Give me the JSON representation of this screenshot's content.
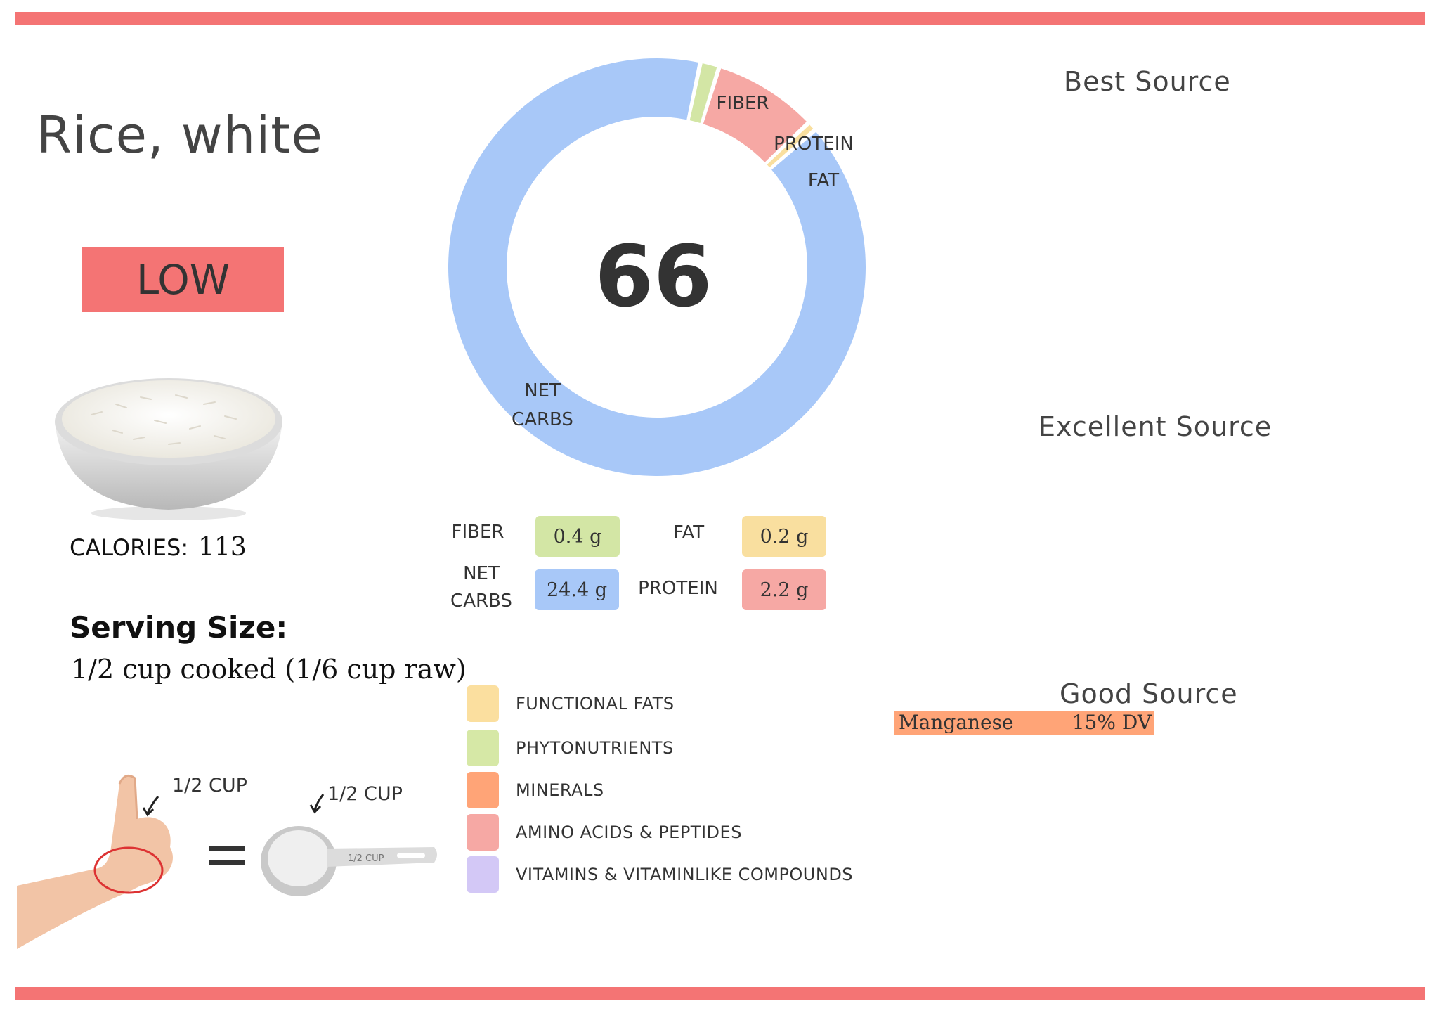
{
  "food": {
    "name": "Rice, white",
    "rating": "LOW",
    "score": "66",
    "calories_label": "CALORIES:",
    "calories": "113"
  },
  "serving": {
    "title": "Serving Size:",
    "value": "1/2 cup cooked (1/6 cup raw)",
    "hand_label": "1/2 CUP",
    "cup_label": "1/2 CUP",
    "cup_handle_text": "1/2 CUP"
  },
  "donut": {
    "labels": {
      "fiber": "FIBER",
      "protein": "PROTEIN",
      "fat": "FAT",
      "net_carbs_1": "NET",
      "net_carbs_2": "CARBS"
    },
    "slices": [
      {
        "name": "FIBER",
        "value": 0.4,
        "color": "#d3e6a5"
      },
      {
        "name": "PROTEIN",
        "value": 2.2,
        "color": "#f6a8a4"
      },
      {
        "name": "FAT",
        "value": 0.2,
        "color": "#f9df9f"
      },
      {
        "name": "NET CARBS",
        "value": 24.4,
        "color": "#a8c8f8"
      }
    ]
  },
  "macros": {
    "fiber_label": "FIBER",
    "fiber_value": "0.4 g",
    "fat_label": "FAT",
    "fat_value": "0.2 g",
    "net_carbs_label_1": "NET",
    "net_carbs_label_2": "CARBS",
    "net_carbs_value": "24.4 g",
    "protein_label": "PROTEIN",
    "protein_value": "2.2 g",
    "colors": {
      "fiber": "#d3e6a5",
      "fat": "#f9df9f",
      "net_carbs": "#a8c8f8",
      "protein": "#f6a8a4"
    }
  },
  "legend": [
    {
      "label": "FUNCTIONAL  FATS",
      "color": "#fbdf9f"
    },
    {
      "label": "PHYTONUTRIENTS",
      "color": "#d6e8a6"
    },
    {
      "label": "MINERALS",
      "color": "#ffa477"
    },
    {
      "label": "AMINO ACIDS & PEPTIDES",
      "color": "#f6a8a4"
    },
    {
      "label": "VITAMINS & VITAMINLIKE COMPOUNDS",
      "color": "#d3c8f6"
    }
  ],
  "sources": {
    "best_title": "Best Source",
    "excellent_title": "Excellent Source",
    "good_title": "Good Source",
    "good_items": [
      {
        "name": "Manganese",
        "dv": "15% DV",
        "color": "#ffa477"
      }
    ]
  },
  "colors": {
    "accent": "#f47474"
  }
}
